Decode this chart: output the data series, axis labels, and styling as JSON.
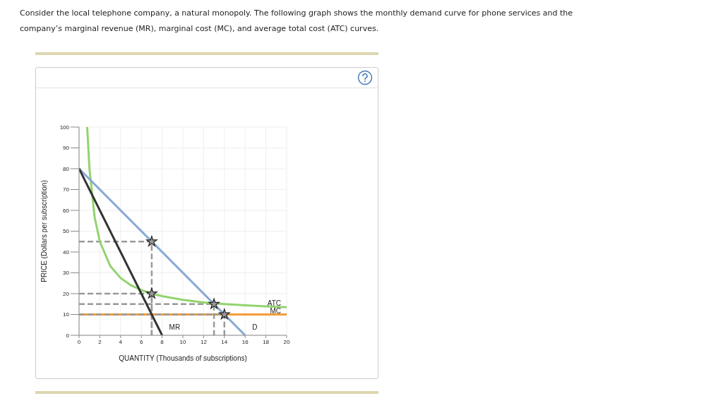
{
  "chart_data": {
    "type": "line",
    "title": "Consider the local telephone company, a natural monopoly. The following graph shows the monthly demand curve for phone services and the company’s marginal revenue (MR), marginal cost (MC), and average total cost (ATC) curves.",
    "xlabel": "QUANTITY (Thousands of subscriptions)",
    "ylabel": "PRICE (Dollars per subscription)",
    "xlim": [
      0,
      20
    ],
    "xticks": [
      0,
      2,
      4,
      6,
      8,
      10,
      12,
      14,
      16,
      18,
      20
    ],
    "ylim": [
      0,
      100
    ],
    "yticks": [
      0,
      10,
      20,
      30,
      40,
      50,
      60,
      70,
      80,
      90,
      100
    ],
    "grid": true,
    "series": [
      {
        "name": "MC",
        "color": "#f39c36",
        "line_style": "solid",
        "marker": "none",
        "x": [
          0,
          20
        ],
        "values": [
          10,
          10
        ]
      },
      {
        "color": "#999999",
        "line_style": "dashed",
        "marker": "none",
        "x": [
          0,
          7,
          7
        ],
        "values": [
          45,
          45,
          0
        ]
      },
      {
        "color": "#999999",
        "line_style": "dashed",
        "marker": "none",
        "x": [
          0,
          7,
          7
        ],
        "values": [
          20,
          20,
          0
        ]
      },
      {
        "color": "#999999",
        "line_style": "dashed",
        "marker": "none",
        "x": [
          0,
          13,
          13
        ],
        "values": [
          15,
          15,
          0
        ]
      },
      {
        "color": "#999999",
        "line_style": "dashed",
        "marker": "none",
        "x": [
          0,
          14,
          14
        ],
        "values": [
          10,
          10,
          0
        ]
      },
      {
        "name": "ATC",
        "color": "#92d36e",
        "line_style": "solid",
        "marker": "none",
        "x": [
          0.78,
          1,
          1.5,
          2,
          3,
          4,
          5,
          6,
          7,
          8,
          10,
          12,
          14,
          16,
          18,
          20
        ],
        "values": [
          100,
          80,
          56.7,
          45,
          33.3,
          27.5,
          24,
          21.7,
          20,
          18.8,
          17,
          15.8,
          15,
          14.4,
          13.9,
          13.5
        ]
      },
      {
        "name": "D",
        "color": "#87a9d3",
        "line_style": "solid",
        "marker": "none",
        "x": [
          0,
          16
        ],
        "values": [
          80,
          0
        ]
      },
      {
        "name": "MR",
        "color": "#333333",
        "line_style": "solid",
        "marker": "none",
        "x": [
          0,
          8
        ],
        "values": [
          80,
          0
        ]
      },
      {
        "type": "scatter",
        "color": "#999999",
        "marker": "star",
        "x": [
          7,
          7,
          13,
          14
        ],
        "values": [
          45,
          20,
          15,
          10
        ]
      }
    ]
  }
}
